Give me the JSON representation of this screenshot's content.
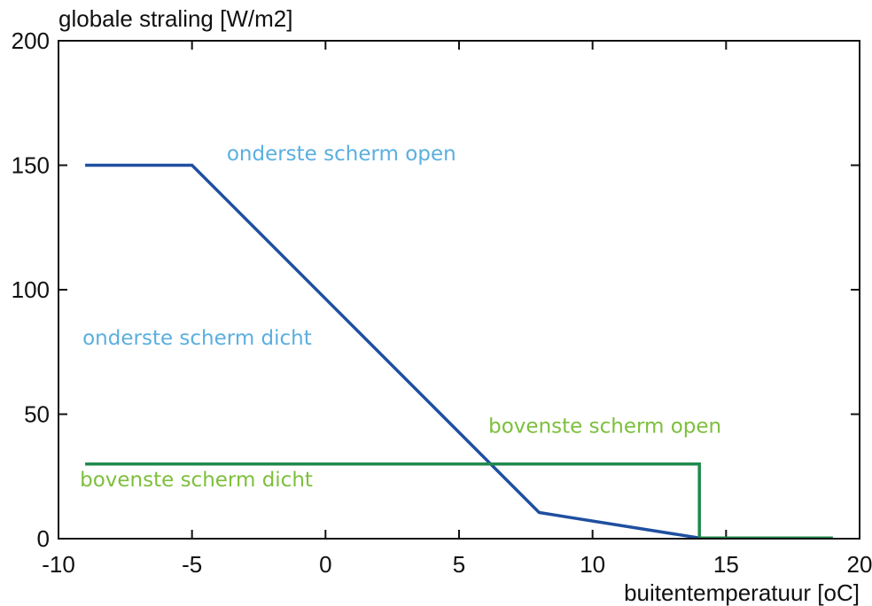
{
  "chart_data": {
    "type": "line",
    "title": "",
    "xlabel": "buitentemperatuur [oC]",
    "ylabel": "globale straling [W/m2]",
    "xlim": [
      -10,
      20
    ],
    "ylim": [
      0,
      200
    ],
    "x_ticks": [
      -10,
      -5,
      0,
      5,
      10,
      15,
      20
    ],
    "y_ticks": [
      0,
      50,
      100,
      150,
      200
    ],
    "x_tick_labels": [
      "-10",
      "-5",
      "0",
      "5",
      "10",
      "15",
      "20"
    ],
    "y_tick_labels": [
      "0",
      "50",
      "100",
      "150",
      "200"
    ],
    "grid": false,
    "series": [
      {
        "color": "#1f4fa0",
        "x": [
          -9,
          -5,
          8,
          14,
          14
        ],
        "y": [
          150,
          150,
          10.5,
          0.3,
          0.3
        ]
      },
      {
        "color": "#1f8a4c",
        "x": [
          -9,
          14,
          14,
          19
        ],
        "y": [
          30,
          30,
          0.3,
          0.3
        ]
      }
    ],
    "annotations": [
      {
        "text": "onderste scherm open",
        "x": -3.7,
        "y": 152,
        "color": "#5aafe0"
      },
      {
        "text": "onderste scherm dicht",
        "x": -9.1,
        "y": 78,
        "color": "#5aafe0"
      },
      {
        "text": "bovenste scherm open",
        "x": 6.1,
        "y": 42.5,
        "color": "#7dbf3c"
      },
      {
        "text": "bovenste scherm dicht",
        "x": -9.2,
        "y": 21,
        "color": "#7dbf3c"
      }
    ]
  }
}
